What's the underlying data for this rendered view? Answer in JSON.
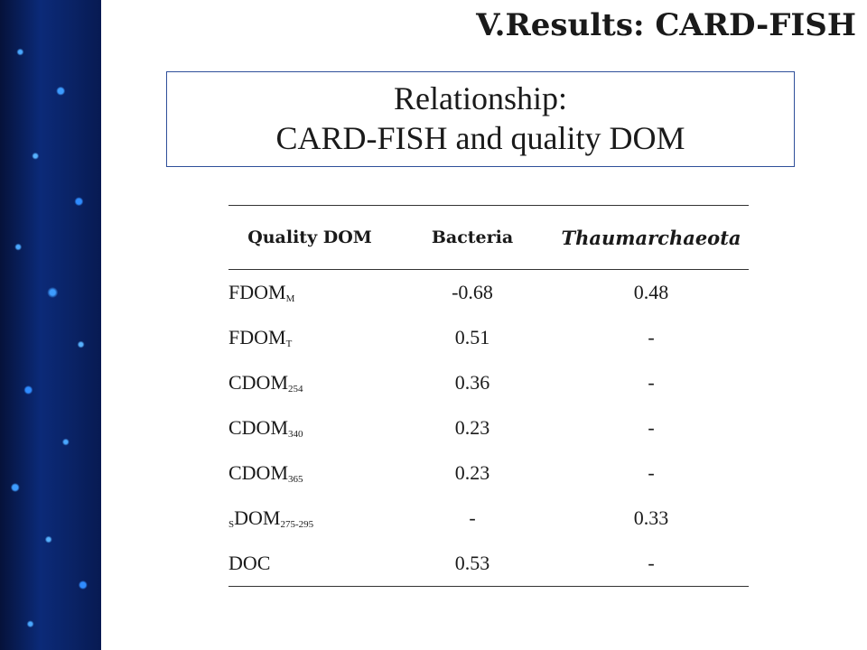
{
  "title": "V.Results: CARD-FISH",
  "subtitle": {
    "line1": "Relationship:",
    "line2": "CARD-FISH and quality DOM"
  },
  "table": {
    "headers": [
      "Quality  DOM",
      "Bacteria",
      "Thaumarchaeota"
    ],
    "rows": [
      {
        "name": "FDOM",
        "prefix": "",
        "sub": "M",
        "bacteria": "-0.68",
        "thaum": "0.48"
      },
      {
        "name": "FDOM",
        "prefix": "",
        "sub": "T",
        "bacteria": "0.51",
        "thaum": "-"
      },
      {
        "name": "CDOM",
        "prefix": "",
        "sub": "254",
        "bacteria": "0.36",
        "thaum": "-"
      },
      {
        "name": "CDOM",
        "prefix": "",
        "sub": "340",
        "bacteria": "0.23",
        "thaum": "-"
      },
      {
        "name": "CDOM",
        "prefix": "",
        "sub": "365",
        "bacteria": "0.23",
        "thaum": "-"
      },
      {
        "name": "DOM",
        "prefix": "S",
        "sub": "275-295",
        "bacteria": "-",
        "thaum": "0.33"
      },
      {
        "name": "DOC",
        "prefix": "",
        "sub": "",
        "bacteria": "0.53",
        "thaum": "-"
      }
    ]
  }
}
